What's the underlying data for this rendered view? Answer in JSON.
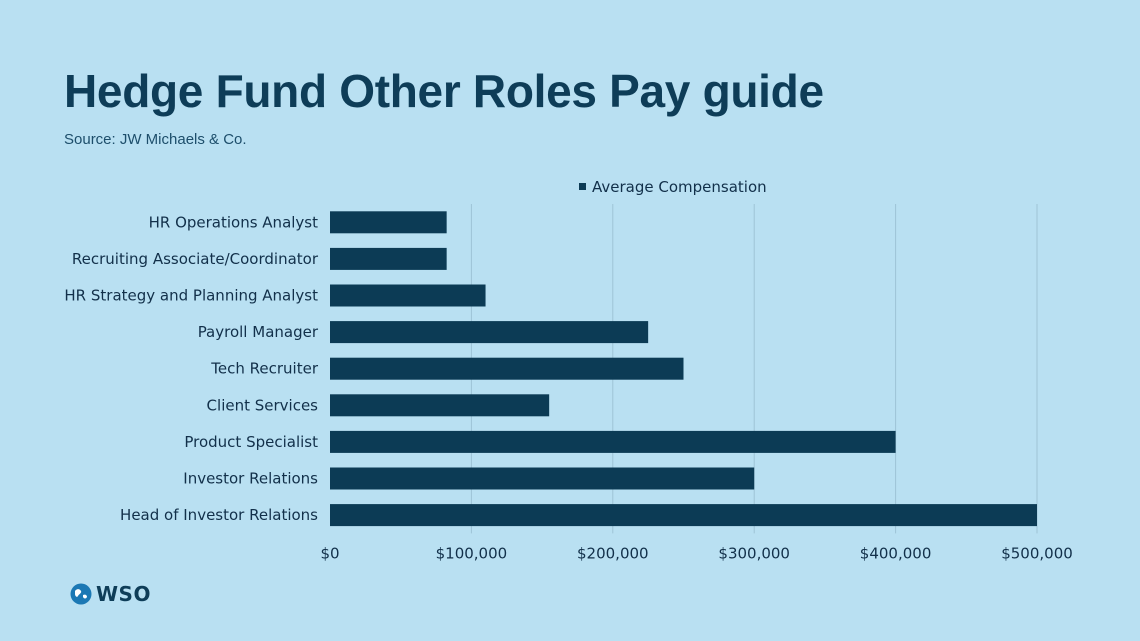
{
  "header": {
    "title": "Hedge Fund Other Roles Pay guide",
    "source": "Source: JW Michaels & Co."
  },
  "brand": {
    "logo_text": "WSO"
  },
  "colors": {
    "background": "#b9e0f2",
    "bar": "#0c3b55",
    "grid": "#9ec3d6",
    "text": "#0e3d58"
  },
  "chart_data": {
    "type": "bar",
    "orientation": "horizontal",
    "categories": [
      "HR Operations Analyst",
      "Recruiting Associate/Coordinator",
      "HR Strategy and Planning Analyst",
      "Payroll Manager",
      "Tech Recruiter",
      "Client Services",
      "Product Specialist",
      "Investor Relations",
      "Head of Investor Relations"
    ],
    "series": [
      {
        "name": "Average Compensation",
        "values": [
          82500,
          82500,
          110000,
          225000,
          250000,
          155000,
          400000,
          300000,
          500000
        ]
      }
    ],
    "xlim": [
      0,
      500000
    ],
    "xticks": [
      0,
      100000,
      200000,
      300000,
      400000,
      500000
    ],
    "xtick_labels": [
      "$0",
      "$100,000",
      "$200,000",
      "$300,000",
      "$400,000",
      "$500,000"
    ],
    "grid": "vertical",
    "legend_position": "top-center"
  }
}
